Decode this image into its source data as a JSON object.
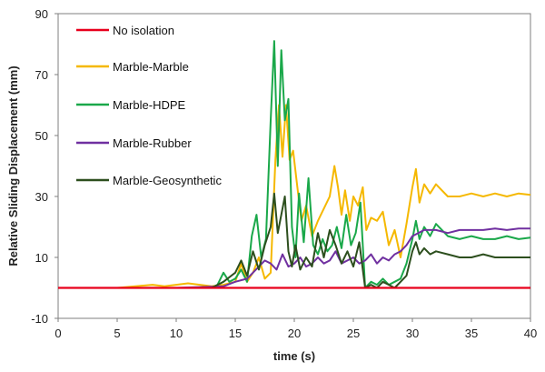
{
  "chart_data": {
    "type": "line",
    "title": "",
    "xlabel": "time (s)",
    "ylabel": "Relative Sliding Displacement (mm)",
    "xlim": [
      0,
      40
    ],
    "ylim": [
      -10,
      90
    ],
    "xticks": [
      0,
      5,
      10,
      15,
      20,
      25,
      30,
      35,
      40
    ],
    "yticks": [
      -10,
      10,
      30,
      50,
      70,
      90
    ],
    "grid": false,
    "legend_position": "top-left",
    "series": [
      {
        "name": "No isolation",
        "color": "#e8001c",
        "x": [
          0,
          40
        ],
        "y": [
          0,
          0
        ]
      },
      {
        "name": "Marble-Marble",
        "color": "#f5b800",
        "x": [
          0,
          5,
          8,
          9,
          10,
          11,
          12,
          13,
          14,
          15,
          15.5,
          16,
          16.5,
          17,
          17.5,
          18,
          18.4,
          18.7,
          19,
          19.3,
          19.6,
          19.9,
          20.2,
          20.6,
          21,
          21.5,
          22,
          22.5,
          23,
          23.4,
          23.7,
          24,
          24.3,
          24.7,
          25,
          25.4,
          25.8,
          26.1,
          26.5,
          27,
          27.5,
          28,
          28.5,
          29,
          29.5,
          30,
          30.3,
          30.6,
          31,
          31.5,
          32,
          32.5,
          33,
          34,
          35,
          36,
          37,
          38,
          39,
          40
        ],
        "y": [
          0,
          0,
          1,
          0.5,
          1,
          1.5,
          1,
          0.5,
          1,
          2,
          8,
          2,
          5,
          10,
          3,
          5,
          42,
          60,
          43,
          60,
          42,
          45,
          35,
          22,
          27,
          17,
          22,
          26,
          30,
          40,
          33,
          24,
          32,
          22,
          30,
          27,
          33,
          19,
          23,
          22,
          25,
          14,
          19,
          10,
          21,
          33,
          39,
          28,
          34,
          31,
          34,
          32,
          30,
          30,
          31,
          30,
          31,
          30,
          31,
          30.5
        ]
      },
      {
        "name": "Marble-HDPE",
        "color": "#1aa84a",
        "x": [
          0,
          10,
          13,
          13.5,
          14,
          14.5,
          15,
          15.5,
          16,
          16.4,
          16.8,
          17.2,
          17.6,
          18,
          18.3,
          18.6,
          18.9,
          19.2,
          19.5,
          19.8,
          20.1,
          20.4,
          20.8,
          21.2,
          21.6,
          22,
          22.4,
          22.8,
          23.2,
          23.6,
          24,
          24.4,
          24.8,
          25.2,
          25.6,
          26,
          26.5,
          27,
          27.5,
          28,
          28.5,
          29,
          29.5,
          30,
          30.3,
          30.6,
          31,
          31.5,
          32,
          33,
          34,
          35,
          36,
          37,
          38,
          39,
          40
        ],
        "y": [
          0,
          0,
          0,
          1,
          5,
          2,
          3,
          6,
          2,
          17,
          24,
          10,
          16,
          55,
          81,
          40,
          78,
          55,
          62,
          20,
          10,
          31,
          15,
          36,
          14,
          11,
          16,
          12,
          14,
          20,
          13,
          24,
          14,
          18,
          28,
          0,
          2,
          1,
          3,
          1,
          2,
          3,
          8,
          16,
          22,
          16,
          20,
          17,
          21,
          17,
          16,
          17,
          16,
          16,
          17,
          16,
          16.5
        ]
      },
      {
        "name": "Marble-Rubber",
        "color": "#7030a0",
        "x": [
          0,
          10,
          14,
          15,
          16,
          16.5,
          17,
          17.5,
          18,
          18.5,
          19,
          19.5,
          20,
          20.5,
          21,
          21.5,
          22,
          22.5,
          23,
          23.5,
          24,
          24.5,
          25,
          25.5,
          26,
          26.5,
          27,
          27.5,
          28,
          28.5,
          29,
          29.5,
          30,
          30.5,
          31,
          32,
          33,
          34,
          35,
          36,
          37,
          38,
          39,
          40
        ],
        "y": [
          0,
          0,
          0.5,
          2,
          3,
          5,
          7,
          9,
          8,
          6,
          11,
          7,
          8,
          10,
          7,
          8,
          10,
          8,
          9,
          12,
          8,
          9,
          10,
          8,
          9,
          11,
          8,
          10,
          9,
          11,
          12,
          14,
          17,
          18,
          19,
          19,
          18,
          19,
          19,
          19,
          19.5,
          19,
          19.5,
          19.5
        ]
      },
      {
        "name": "Marble-Geosynthetic",
        "color": "#2d4f1e",
        "x": [
          0,
          10,
          13,
          14,
          15,
          15.5,
          16,
          16.5,
          17,
          17.5,
          18,
          18.3,
          18.6,
          18.9,
          19.2,
          19.5,
          19.8,
          20.1,
          20.5,
          21,
          21.5,
          22,
          22.5,
          23,
          23.5,
          24,
          24.5,
          25,
          25.5,
          26,
          26.5,
          27,
          27.5,
          28,
          28.5,
          29,
          29.5,
          30,
          30.3,
          30.6,
          31,
          31.5,
          32,
          33,
          34,
          35,
          36,
          37,
          38,
          39,
          40
        ],
        "y": [
          0,
          0,
          0,
          2,
          5,
          9,
          4,
          12,
          6,
          14,
          20,
          31,
          18,
          24,
          30,
          12,
          7,
          14,
          6,
          10,
          7,
          18,
          10,
          19,
          14,
          8,
          12,
          7,
          15,
          0,
          1,
          0,
          2,
          1,
          0,
          2,
          4,
          12,
          15,
          11,
          13,
          11,
          12,
          11,
          10,
          10,
          11,
          10,
          10,
          10,
          10
        ]
      }
    ]
  }
}
